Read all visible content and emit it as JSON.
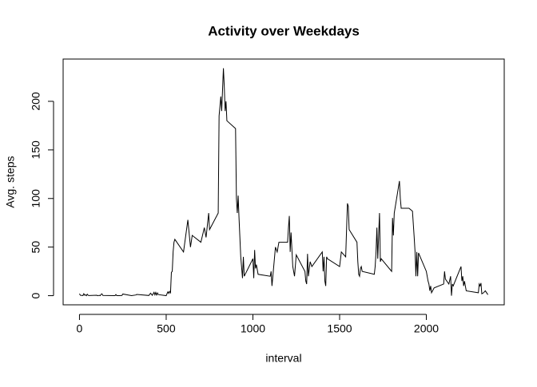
{
  "chart_data": {
    "type": "line",
    "title": "Activity over Weekdays",
    "x_label": "interval",
    "y_label": "Avg. steps",
    "color": "#000000",
    "x": [
      0,
      5,
      10,
      15,
      20,
      25,
      30,
      35,
      40,
      45,
      50,
      55,
      100,
      105,
      110,
      115,
      120,
      125,
      130,
      135,
      200,
      205,
      210,
      215,
      220,
      230,
      245,
      250,
      300,
      325,
      330,
      400,
      410,
      420,
      430,
      435,
      440,
      445,
      450,
      455,
      500,
      505,
      510,
      515,
      520,
      525,
      530,
      535,
      540,
      545,
      550,
      600,
      625,
      640,
      650,
      700,
      720,
      730,
      745,
      750,
      800,
      805,
      815,
      820,
      830,
      835,
      840,
      845,
      850,
      900,
      905,
      910,
      915,
      920,
      930,
      940,
      945,
      950,
      1000,
      1005,
      1010,
      1015,
      1020,
      1030,
      1100,
      1105,
      1110,
      1115,
      1130,
      1140,
      1150,
      1200,
      1205,
      1210,
      1215,
      1220,
      1230,
      1240,
      1250,
      1300,
      1305,
      1310,
      1315,
      1320,
      1330,
      1340,
      1400,
      1405,
      1410,
      1415,
      1420,
      1425,
      1430,
      1500,
      1510,
      1535,
      1545,
      1550,
      1555,
      1600,
      1605,
      1610,
      1615,
      1620,
      1625,
      1630,
      1700,
      1705,
      1710,
      1715,
      1720,
      1725,
      1730,
      1735,
      1740,
      1800,
      1805,
      1810,
      1815,
      1845,
      1850,
      1855,
      1900,
      1920,
      1930,
      1935,
      1940,
      1945,
      1950,
      1955,
      2000,
      2005,
      2010,
      2015,
      2020,
      2025,
      2030,
      2045,
      2100,
      2105,
      2110,
      2130,
      2140,
      2145,
      2150,
      2155,
      2200,
      2205,
      2210,
      2215,
      2220,
      2230,
      2300,
      2305,
      2310,
      2315,
      2320,
      2330,
      2340,
      2355
    ],
    "values": [
      2,
      0.5,
      0.2,
      0.2,
      0.1,
      2,
      0.5,
      0.9,
      0,
      1.5,
      0.4,
      0.1,
      0.4,
      0,
      0.2,
      0.3,
      0,
      1.5,
      1.9,
      0.2,
      0,
      0,
      1.2,
      0,
      0,
      0,
      0.2,
      1.7,
      0,
      0.7,
      1.3,
      0.2,
      2.6,
      0.4,
      3.5,
      0.9,
      3.3,
      0.7,
      2.8,
      1.1,
      0,
      2.1,
      4,
      2.3,
      4.4,
      3,
      24,
      25,
      45,
      55,
      58,
      45,
      78,
      50,
      62,
      55,
      70,
      60,
      85,
      68,
      85,
      185,
      205,
      190,
      234,
      215,
      190,
      200,
      180,
      172,
      100,
      85,
      103,
      80,
      40,
      18,
      40,
      20,
      38,
      18,
      47,
      28,
      32,
      22,
      20,
      25,
      10,
      20,
      50,
      45,
      55,
      55,
      70,
      82,
      45,
      65,
      30,
      20,
      42,
      25,
      15,
      12,
      43,
      20,
      35,
      30,
      45,
      25,
      40,
      15,
      10,
      40,
      38,
      30,
      45,
      40,
      95,
      92,
      68,
      55,
      35,
      22,
      20,
      28,
      30,
      25,
      22,
      30,
      45,
      70,
      38,
      62,
      85,
      35,
      38,
      25,
      80,
      62,
      85,
      118,
      100,
      90,
      90,
      87,
      60,
      45,
      20,
      45,
      20,
      44,
      25,
      20,
      15,
      12,
      5,
      10,
      3,
      8,
      12,
      25,
      17,
      12,
      20,
      0,
      12,
      10,
      30,
      15,
      20,
      10,
      15,
      5,
      3,
      12,
      10,
      13,
      2,
      3,
      5,
      1
    ],
    "xlim": [
      -94.2,
      2449.2
    ],
    "ylim": [
      -9.4,
      243.5
    ],
    "xticks": [
      0,
      500,
      1000,
      1500,
      2000
    ],
    "yticks": [
      0,
      50,
      100,
      150,
      200
    ]
  }
}
